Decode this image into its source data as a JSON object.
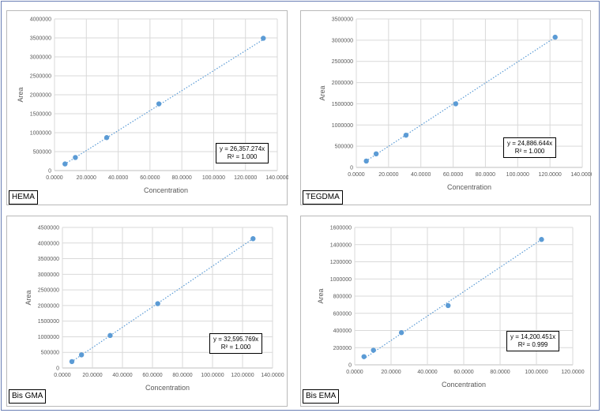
{
  "colors": {
    "marker": "#5b9bd5",
    "trend": "#5b9bd5",
    "grid": "#d9d9d9",
    "axis_text": "#595959"
  },
  "chart_data": [
    {
      "type": "scatter",
      "title": "",
      "label": "HEMA",
      "xlabel": "Concentration",
      "ylabel": "Area",
      "xlim": [
        0,
        140
      ],
      "ylim": [
        0,
        4000000
      ],
      "x_ticks": [
        "0.0000",
        "20.0000",
        "40.0000",
        "60.0000",
        "80.0000",
        "100.0000",
        "120.0000",
        "140.0000"
      ],
      "y_ticks": [
        "0",
        "500000",
        "1000000",
        "1500000",
        "2000000",
        "2500000",
        "3000000",
        "3500000",
        "4000000"
      ],
      "x": [
        6.6,
        13.1,
        32.8,
        65.6,
        131.2
      ],
      "y": [
        175000,
        345000,
        870000,
        1760000,
        3490000
      ],
      "trendline": {
        "slope": 26357.274,
        "equation": "y = 26,357.274x",
        "r2": "R² = 1.000"
      }
    },
    {
      "type": "scatter",
      "title": "",
      "label": "TEGDMA",
      "xlabel": "Concentration",
      "ylabel": "Area",
      "xlim": [
        0,
        140
      ],
      "ylim": [
        0,
        3500000
      ],
      "x_ticks": [
        "0.0000",
        "20.0000",
        "40.0000",
        "60.0000",
        "80.0000",
        "100.0000",
        "120.0000",
        "140.0000"
      ],
      "y_ticks": [
        "0",
        "500000",
        "1000000",
        "1500000",
        "2000000",
        "2500000",
        "3000000",
        "3500000"
      ],
      "x": [
        6.2,
        12.3,
        30.8,
        61.6,
        123.2
      ],
      "y": [
        150000,
        320000,
        760000,
        1500000,
        3070000
      ],
      "trendline": {
        "slope": 24886.644,
        "equation": "y = 24,886.644x",
        "r2": "R² = 1.000"
      }
    },
    {
      "type": "scatter",
      "title": "",
      "label": "Bis GMA",
      "xlabel": "Concentration",
      "ylabel": "Area",
      "xlim": [
        0,
        140
      ],
      "ylim": [
        0,
        4500000
      ],
      "x_ticks": [
        "0.0000",
        "20.0000",
        "40.0000",
        "60.0000",
        "80.0000",
        "100.0000",
        "120.0000",
        "140.0000"
      ],
      "y_ticks": [
        "0",
        "500000",
        "1000000",
        "1500000",
        "2000000",
        "2500000",
        "3000000",
        "3500000",
        "4000000",
        "4500000"
      ],
      "x": [
        6.3,
        12.7,
        31.8,
        63.5,
        127.0
      ],
      "y": [
        205000,
        420000,
        1040000,
        2060000,
        4140000
      ],
      "trendline": {
        "slope": 32595.769,
        "equation": "y = 32,595.769x",
        "r2": "R² = 1.000"
      }
    },
    {
      "type": "scatter",
      "title": "",
      "label": "Bis EMA",
      "xlabel": "Concentration",
      "ylabel": "Area",
      "xlim": [
        0,
        120
      ],
      "ylim": [
        0,
        1600000
      ],
      "x_ticks": [
        "0.0000",
        "20.0000",
        "40.0000",
        "60.0000",
        "80.0000",
        "100.0000",
        "120.0000"
      ],
      "y_ticks": [
        "0",
        "200000",
        "400000",
        "600000",
        "800000",
        "1000000",
        "1200000",
        "1400000",
        "1600000"
      ],
      "x": [
        5.1,
        10.3,
        25.7,
        51.4,
        102.8
      ],
      "y": [
        95000,
        170000,
        375000,
        690000,
        1460000
      ],
      "trendline": {
        "slope": 14200.451,
        "equation": "y = 14,200.451x",
        "r2": "R² = 0.999"
      }
    }
  ]
}
